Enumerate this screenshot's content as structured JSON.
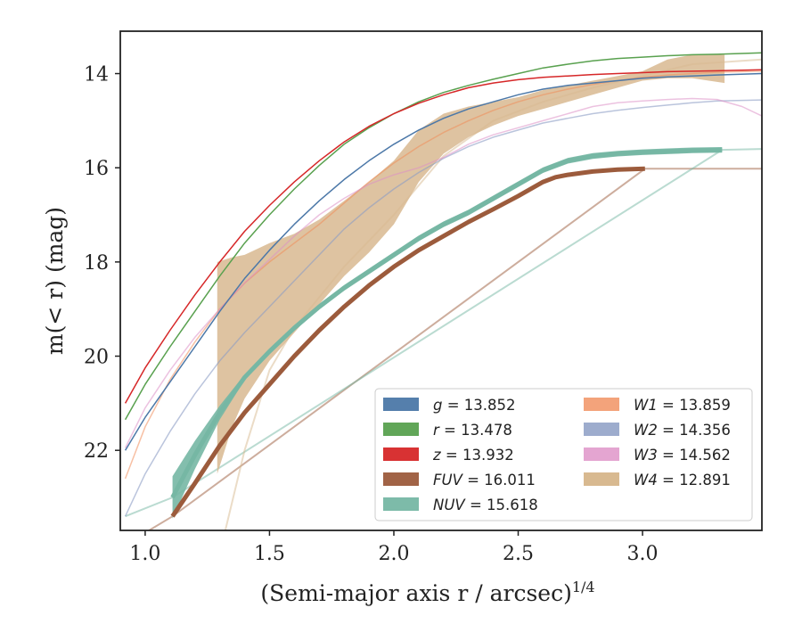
{
  "chart_data": {
    "type": "area",
    "xlabel": "(Semi-major axis r / arcsec)",
    "xlabel_sup": "1/4",
    "ylabel": "m(< r) (mag)",
    "xlim": [
      0.9,
      3.48
    ],
    "ylim": [
      23.7,
      13.1
    ],
    "y_inverted": true,
    "grid": false,
    "legend_position": "lower-right",
    "x_ticks": [
      1.0,
      1.5,
      2.0,
      2.5,
      3.0
    ],
    "x_tick_labels": [
      "1.0",
      "1.5",
      "2.0",
      "2.5",
      "3.0"
    ],
    "y_ticks": [
      14,
      16,
      18,
      20,
      22
    ],
    "y_tick_labels": [
      "14",
      "16",
      "18",
      "20",
      "22"
    ],
    "series": [
      {
        "band": "g",
        "value": "13.852",
        "color": "#4c78a8",
        "x": [
          0.92,
          1.0,
          1.1,
          1.2,
          1.3,
          1.4,
          1.5,
          1.6,
          1.7,
          1.8,
          1.9,
          2.0,
          2.1,
          2.2,
          2.3,
          2.4,
          2.5,
          2.6,
          2.7,
          2.8,
          2.9,
          3.0,
          3.1,
          3.2,
          3.3,
          3.48
        ],
        "y": [
          22.0,
          21.3,
          20.55,
          19.8,
          19.05,
          18.35,
          17.75,
          17.2,
          16.7,
          16.25,
          15.85,
          15.5,
          15.2,
          14.95,
          14.75,
          14.6,
          14.45,
          14.33,
          14.25,
          14.2,
          14.15,
          14.1,
          14.07,
          14.05,
          14.03,
          14.0
        ],
        "width": 1.5
      },
      {
        "band": "r",
        "value": "13.478",
        "color": "#59a14f",
        "x": [
          0.92,
          1.0,
          1.1,
          1.2,
          1.3,
          1.4,
          1.5,
          1.6,
          1.7,
          1.8,
          1.9,
          2.0,
          2.1,
          2.2,
          2.3,
          2.4,
          2.5,
          2.6,
          2.7,
          2.8,
          2.9,
          3.0,
          3.1,
          3.2,
          3.3,
          3.48
        ],
        "y": [
          21.35,
          20.6,
          19.8,
          19.05,
          18.3,
          17.6,
          17.0,
          16.45,
          15.95,
          15.5,
          15.15,
          14.85,
          14.6,
          14.4,
          14.25,
          14.12,
          14.0,
          13.88,
          13.8,
          13.73,
          13.68,
          13.65,
          13.62,
          13.6,
          13.59,
          13.56
        ],
        "width": 1.5
      },
      {
        "band": "z",
        "value": "13.932",
        "color": "#d62728",
        "x": [
          0.92,
          1.0,
          1.1,
          1.2,
          1.3,
          1.4,
          1.5,
          1.6,
          1.7,
          1.8,
          1.9,
          2.0,
          2.1,
          2.2,
          2.3,
          2.4,
          2.5,
          2.6,
          2.7,
          2.8,
          2.9,
          3.0,
          3.1,
          3.2,
          3.3,
          3.48
        ],
        "y": [
          21.0,
          20.25,
          19.45,
          18.7,
          18.0,
          17.35,
          16.8,
          16.3,
          15.85,
          15.45,
          15.12,
          14.85,
          14.63,
          14.45,
          14.3,
          14.2,
          14.13,
          14.08,
          14.05,
          14.02,
          14.0,
          13.98,
          13.96,
          13.95,
          13.94,
          13.92
        ],
        "width": 1.5
      },
      {
        "band": "FUV",
        "value": "16.011",
        "color": "#9c5b3c",
        "x": [
          1.11,
          1.2,
          1.3,
          1.4,
          1.5,
          1.6,
          1.7,
          1.8,
          1.9,
          2.0,
          2.1,
          2.2,
          2.3,
          2.4,
          2.5,
          2.6,
          2.65,
          2.7,
          2.8,
          2.9,
          3.01
        ],
        "y": [
          23.4,
          22.7,
          21.9,
          21.2,
          20.6,
          20.0,
          19.45,
          18.95,
          18.5,
          18.1,
          17.75,
          17.45,
          17.15,
          16.88,
          16.6,
          16.3,
          16.2,
          16.15,
          16.08,
          16.04,
          16.02
        ],
        "width": 5,
        "ext_x": [
          1.0,
          1.11,
          3.01,
          3.48
        ],
        "ext_y": [
          23.75,
          23.4,
          16.02,
          16.02
        ]
      },
      {
        "band": "NUV",
        "value": "15.618",
        "color": "#76b7a4",
        "x": [
          1.11,
          1.2,
          1.3,
          1.4,
          1.5,
          1.6,
          1.7,
          1.8,
          1.9,
          2.0,
          2.1,
          2.2,
          2.3,
          2.4,
          2.5,
          2.6,
          2.7,
          2.8,
          2.9,
          3.0,
          3.1,
          3.2,
          3.32
        ],
        "y": [
          23.0,
          22.1,
          21.2,
          20.45,
          19.9,
          19.4,
          18.95,
          18.55,
          18.2,
          17.85,
          17.5,
          17.2,
          16.95,
          16.65,
          16.35,
          16.05,
          15.85,
          15.75,
          15.7,
          15.67,
          15.65,
          15.63,
          15.62
        ],
        "width": 5,
        "halfwidth_start": 0.45,
        "ext_x": [
          0.92,
          1.11,
          3.32,
          3.48
        ],
        "ext_y": [
          23.4,
          23.0,
          15.62,
          15.6
        ]
      },
      {
        "band": "W1",
        "value": "13.859",
        "color": "#f08c5a",
        "x": [
          0.92,
          1.0,
          1.1,
          1.2,
          1.3,
          1.4,
          1.5,
          1.6,
          1.7,
          1.8,
          1.9,
          2.0,
          2.1,
          2.2,
          2.3,
          2.4,
          2.5,
          2.6,
          2.7,
          2.8,
          2.9,
          3.0,
          3.1,
          3.2,
          3.3,
          3.48
        ],
        "y": [
          22.6,
          21.5,
          20.5,
          19.7,
          19.0,
          18.45,
          18.0,
          17.6,
          17.2,
          16.75,
          16.3,
          15.9,
          15.55,
          15.25,
          15.0,
          14.78,
          14.6,
          14.45,
          14.33,
          14.23,
          14.15,
          14.08,
          14.03,
          14.0,
          13.97,
          13.95
        ],
        "width": 1.5,
        "alpha": 0.55
      },
      {
        "band": "W2",
        "value": "14.356",
        "color": "#8c9dc4",
        "x": [
          0.92,
          1.0,
          1.1,
          1.2,
          1.3,
          1.4,
          1.5,
          1.6,
          1.7,
          1.8,
          1.9,
          2.0,
          2.1,
          2.2,
          2.3,
          2.4,
          2.5,
          2.6,
          2.7,
          2.8,
          2.9,
          3.0,
          3.1,
          3.2,
          3.3,
          3.48
        ],
        "y": [
          23.4,
          22.5,
          21.6,
          20.8,
          20.1,
          19.5,
          18.95,
          18.4,
          17.85,
          17.3,
          16.85,
          16.45,
          16.1,
          15.8,
          15.55,
          15.35,
          15.2,
          15.05,
          14.95,
          14.85,
          14.78,
          14.72,
          14.67,
          14.62,
          14.58,
          14.56
        ],
        "width": 1.5,
        "alpha": 0.6
      },
      {
        "band": "W3",
        "value": "14.562",
        "color": "#dd8fc6",
        "x": [
          0.92,
          1.0,
          1.1,
          1.2,
          1.3,
          1.4,
          1.5,
          1.6,
          1.7,
          1.8,
          1.9,
          2.0,
          2.1,
          2.2,
          2.3,
          2.4,
          2.5,
          2.6,
          2.7,
          2.8,
          2.9,
          3.0,
          3.1,
          3.2,
          3.3,
          3.4,
          3.48
        ],
        "y": [
          21.95,
          21.1,
          20.3,
          19.6,
          19.0,
          18.45,
          17.95,
          17.45,
          17.0,
          16.65,
          16.35,
          16.15,
          16.0,
          15.78,
          15.5,
          15.3,
          15.15,
          15.0,
          14.85,
          14.7,
          14.62,
          14.58,
          14.55,
          14.53,
          14.55,
          14.7,
          14.9
        ],
        "width": 1.5,
        "alpha": 0.55
      },
      {
        "band": "W4",
        "value": "12.891",
        "color": "#d8b990",
        "x": [
          1.29,
          1.35,
          1.4,
          1.5,
          1.6,
          1.7,
          1.8,
          1.9,
          2.0,
          2.1,
          2.2,
          2.3,
          2.4,
          2.5,
          2.6,
          2.7,
          2.8,
          2.9,
          3.0,
          3.1,
          3.2,
          3.33
        ],
        "y_top": [
          18.0,
          17.9,
          17.85,
          17.6,
          17.4,
          17.1,
          16.7,
          16.3,
          15.85,
          15.2,
          14.85,
          14.7,
          14.6,
          14.5,
          14.35,
          14.25,
          14.15,
          14.05,
          13.95,
          13.7,
          13.6,
          13.6
        ],
        "y_bottom": [
          22.5,
          21.5,
          20.9,
          20.1,
          19.5,
          18.9,
          18.3,
          17.8,
          17.2,
          16.3,
          15.7,
          15.35,
          15.1,
          14.9,
          14.75,
          14.6,
          14.45,
          14.3,
          14.15,
          14.1,
          14.1,
          14.2
        ],
        "alpha": 0.85,
        "ext_x": [
          1.32,
          1.4,
          1.5,
          1.6,
          1.8,
          2.0,
          2.2,
          2.4,
          2.6,
          2.8,
          3.0,
          3.2,
          3.48
        ],
        "ext_y": [
          23.75,
          22.0,
          20.3,
          19.4,
          18.1,
          17.0,
          15.75,
          15.0,
          14.6,
          14.3,
          14.05,
          13.8,
          13.7
        ]
      }
    ]
  }
}
